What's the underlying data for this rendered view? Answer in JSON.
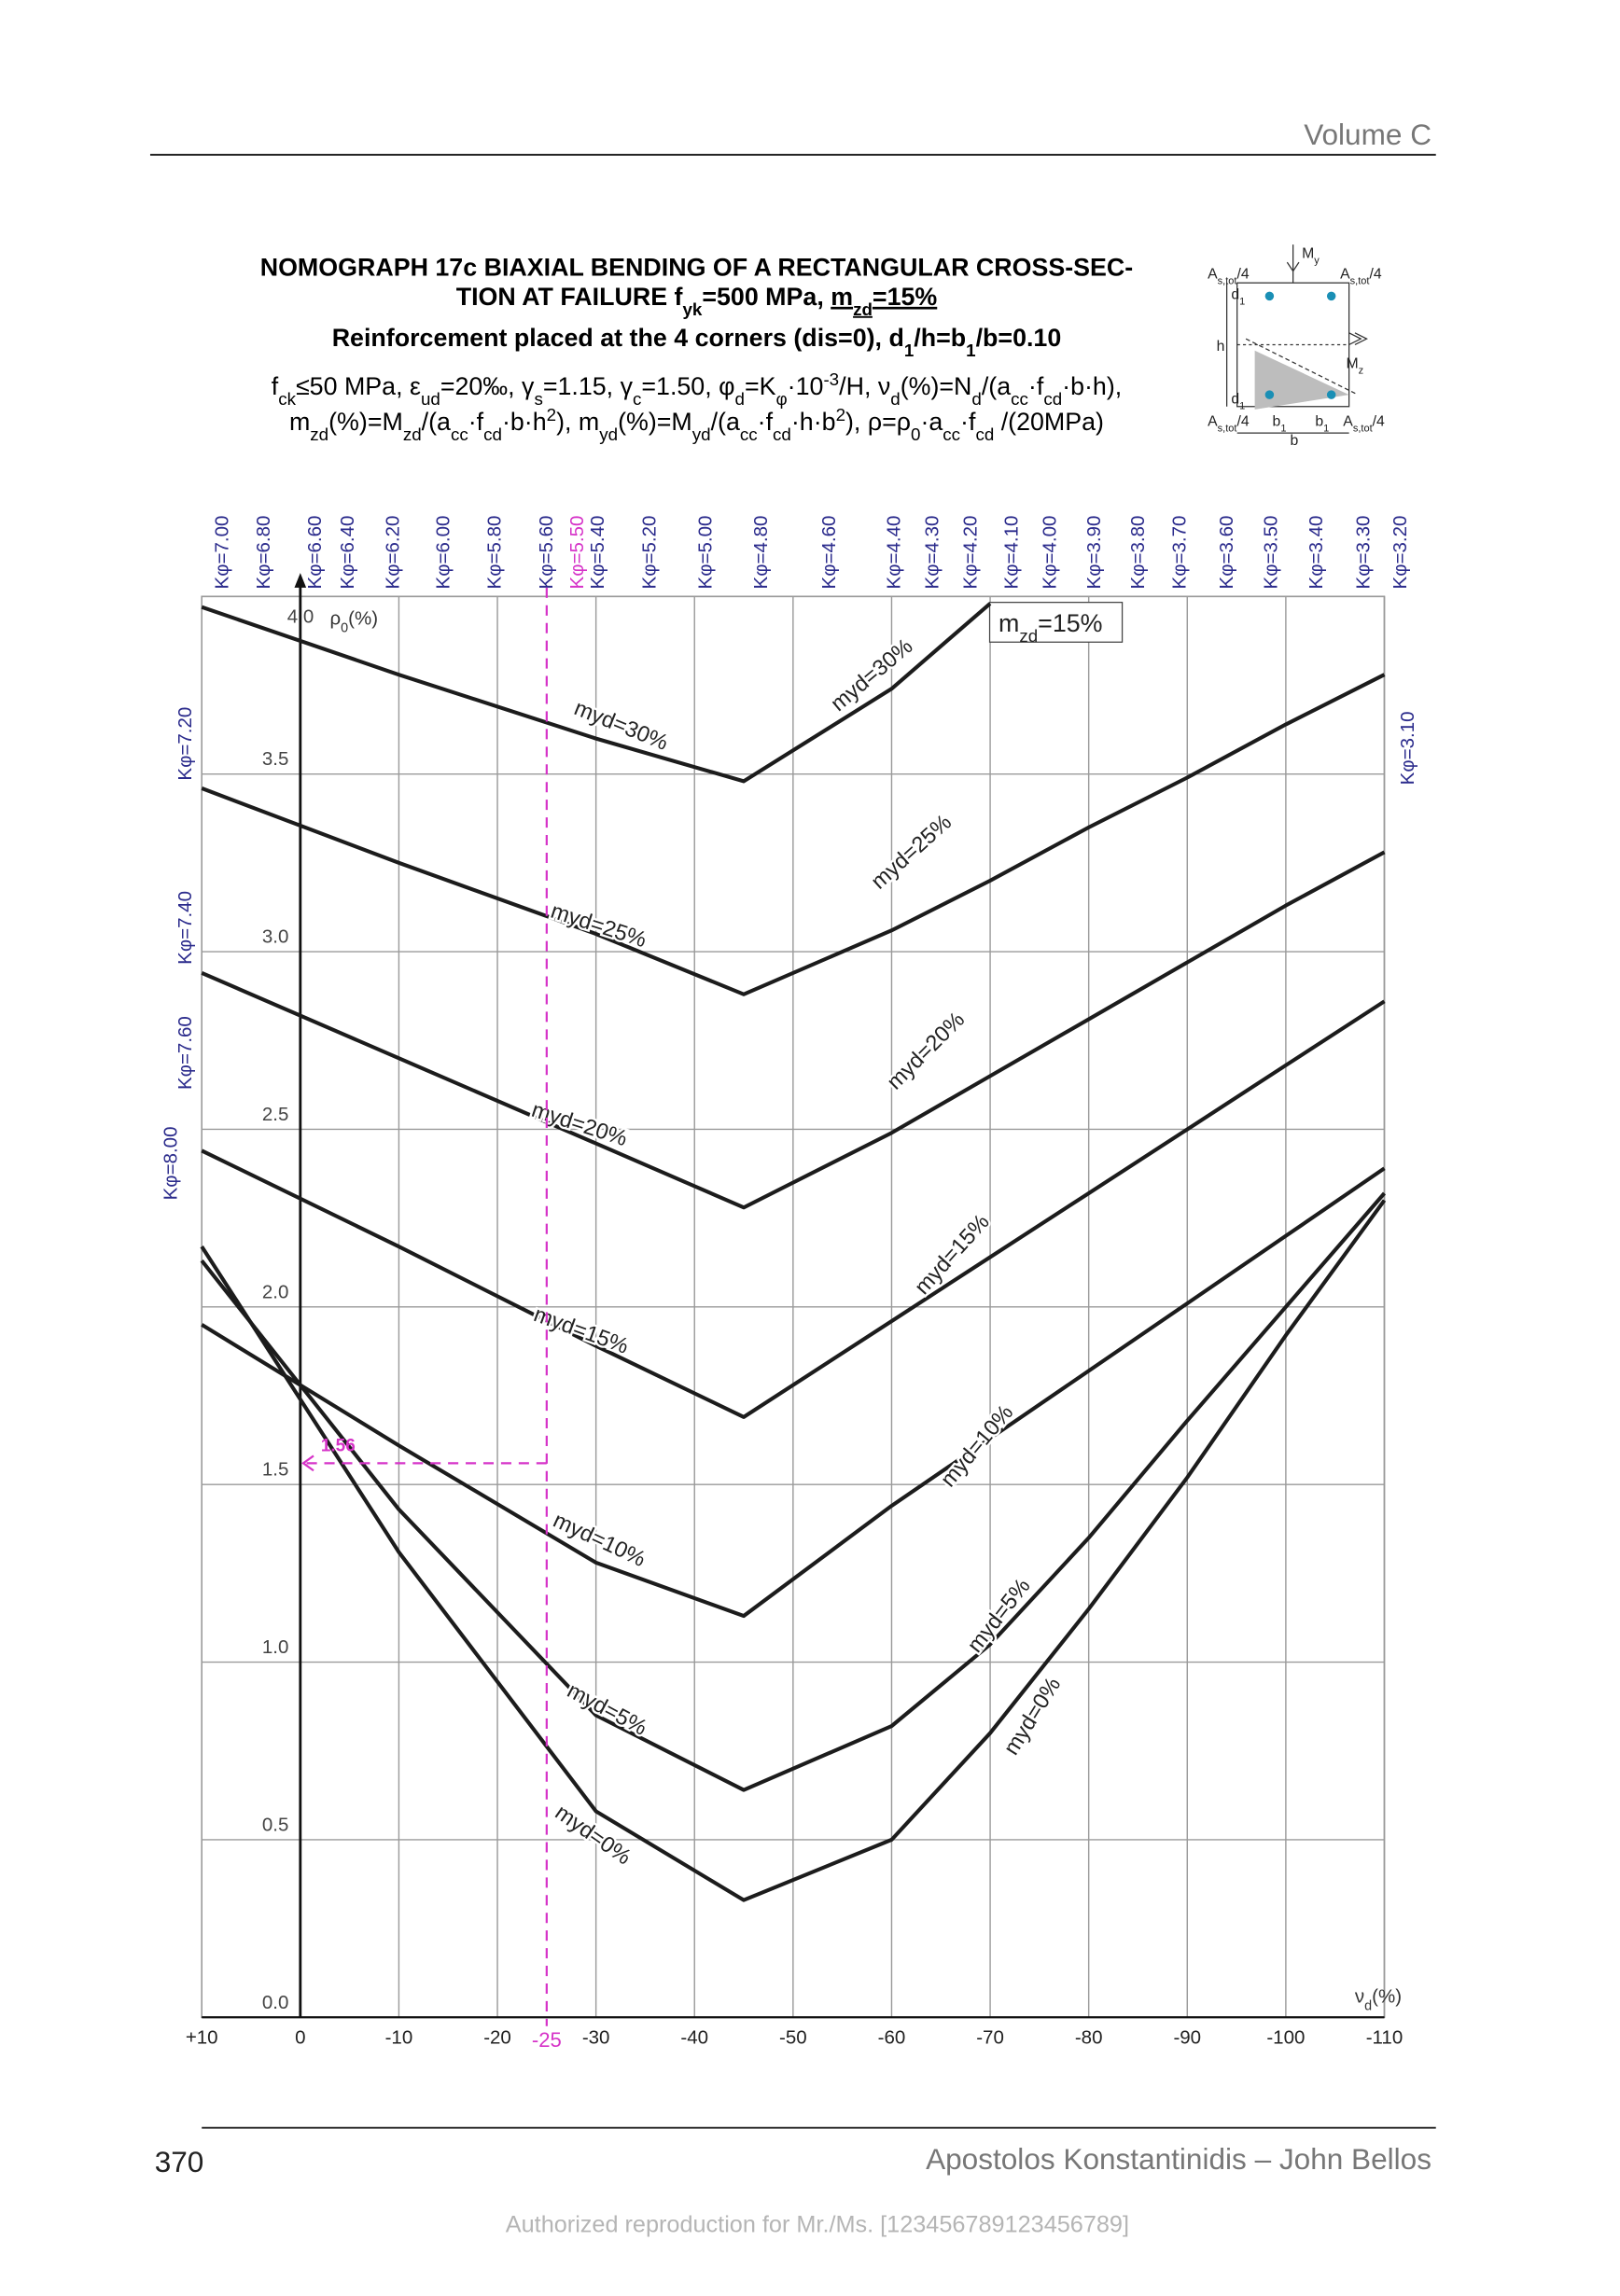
{
  "header": {
    "volume": "Volume C"
  },
  "title_lines": [
    [
      {
        "t": "NOMOGRAPH 17c BIAXIAL BENDING OF A RECTANGULAR CROSS-SEC-"
      }
    ],
    [
      {
        "t": "TION AT FAILURE f"
      },
      {
        "t": "yk",
        "s": "sub"
      },
      {
        "t": "=500 MPa, "
      },
      {
        "t": "m",
        "u": true
      },
      {
        "t": "zd",
        "s": "sub",
        "u": true
      },
      {
        "t": "=15%",
        "u": true
      }
    ],
    [
      {
        "t": "Reinforcement placed at the 4 corners (dis=0), d"
      },
      {
        "t": "1",
        "s": "sub"
      },
      {
        "t": "/h=b"
      },
      {
        "t": "1",
        "s": "sub"
      },
      {
        "t": "/b=0.10"
      }
    ],
    [
      {
        "t": "f"
      },
      {
        "t": "ck",
        "s": "sub"
      },
      {
        "t": "≤50 MPa, ε"
      },
      {
        "t": "ud",
        "s": "sub"
      },
      {
        "t": "=20‰, γ"
      },
      {
        "t": "s",
        "s": "sub"
      },
      {
        "t": "=1.15, γ"
      },
      {
        "t": "c",
        "s": "sub"
      },
      {
        "t": "=1.50, φ"
      },
      {
        "t": "d",
        "s": "sub"
      },
      {
        "t": "=K"
      },
      {
        "t": "φ",
        "s": "sub"
      },
      {
        "t": "·10"
      },
      {
        "t": "-3",
        "s": "sup"
      },
      {
        "t": "/H, ν"
      },
      {
        "t": "d",
        "s": "sub"
      },
      {
        "t": "(%)=N"
      },
      {
        "t": "d",
        "s": "sub"
      },
      {
        "t": "/(a"
      },
      {
        "t": "cc",
        "s": "sub"
      },
      {
        "t": "·f"
      },
      {
        "t": "cd",
        "s": "sub"
      },
      {
        "t": "·b·h),"
      }
    ],
    [
      {
        "t": "m"
      },
      {
        "t": "zd",
        "s": "sub"
      },
      {
        "t": "(%)=M"
      },
      {
        "t": "zd",
        "s": "sub"
      },
      {
        "t": "/(a"
      },
      {
        "t": "cc",
        "s": "sub"
      },
      {
        "t": "·f"
      },
      {
        "t": "cd",
        "s": "sub"
      },
      {
        "t": "·b·h"
      },
      {
        "t": "2",
        "s": "sup"
      },
      {
        "t": "), m"
      },
      {
        "t": "yd",
        "s": "sub"
      },
      {
        "t": "(%)=M"
      },
      {
        "t": "yd",
        "s": "sub"
      },
      {
        "t": "/(a"
      },
      {
        "t": "cc",
        "s": "sub"
      },
      {
        "t": "·f"
      },
      {
        "t": "cd",
        "s": "sub"
      },
      {
        "t": "·h·b"
      },
      {
        "t": "2",
        "s": "sup"
      },
      {
        "t": "), ρ=ρ"
      },
      {
        "t": "0",
        "s": "sub"
      },
      {
        "t": "·a"
      },
      {
        "t": "cc",
        "s": "sub"
      },
      {
        "t": "·f"
      },
      {
        "t": "cd",
        "s": "sub"
      },
      {
        "t": " /(20MPa)"
      }
    ]
  ],
  "diagram": {
    "labels": [
      [
        {
          "t": "A"
        },
        {
          "t": "s,tot",
          "s": "sub"
        },
        {
          "t": "/4"
        }
      ],
      [
        {
          "t": "A"
        },
        {
          "t": "s,tot",
          "s": "sub"
        },
        {
          "t": "/4"
        }
      ],
      [
        {
          "t": "A"
        },
        {
          "t": "s,tot",
          "s": "sub"
        },
        {
          "t": "/4"
        }
      ],
      [
        {
          "t": "A"
        },
        {
          "t": "s,tot",
          "s": "sub"
        },
        {
          "t": "/4"
        }
      ],
      [
        {
          "t": "M"
        },
        {
          "t": "y",
          "s": "sub"
        }
      ],
      [
        {
          "t": "M"
        },
        {
          "t": "z",
          "s": "sub"
        }
      ],
      [
        {
          "t": "h"
        }
      ],
      [
        {
          "t": "d"
        },
        {
          "t": "1",
          "s": "sub"
        }
      ],
      [
        {
          "t": "d"
        },
        {
          "t": "1",
          "s": "sub"
        }
      ],
      [
        {
          "t": "b"
        },
        {
          "t": "1",
          "s": "sub"
        }
      ],
      [
        {
          "t": "b"
        },
        {
          "t": "1",
          "s": "sub"
        }
      ],
      [
        {
          "t": "b"
        }
      ]
    ]
  },
  "chart_data": {
    "type": "line",
    "xlim": [
      10,
      -110
    ],
    "ylim": [
      0,
      4
    ],
    "xticks": [
      {
        "value": 10,
        "label": "+10"
      },
      0,
      -10,
      -20,
      -30,
      -40,
      -50,
      -60,
      -70,
      -80,
      -90,
      -100,
      -110
    ],
    "yticks": [
      {
        "value": 0,
        "label": "0.0"
      },
      0.5,
      {
        "value": 1,
        "label": "1.0"
      },
      1.5,
      {
        "value": 2,
        "label": "2.0"
      },
      2.5,
      {
        "value": 3,
        "label": "3.0"
      },
      3.5,
      {
        "value": 4,
        "label": "4.0"
      }
    ],
    "grid": true,
    "xlabel": [
      {
        "t": "ν"
      },
      {
        "t": "d",
        "s": "sub"
      },
      {
        "t": "(%)"
      }
    ],
    "ylabel": [
      {
        "t": "ρ"
      },
      {
        "t": "0",
        "s": "sub"
      },
      {
        "t": "(%)"
      }
    ],
    "annotation": [
      {
        "t": "m"
      },
      {
        "t": "zd",
        "s": "sub"
      },
      {
        "t": "=15%"
      }
    ],
    "x": [
      10,
      -10,
      -30,
      -45,
      -60,
      -70,
      -80,
      -90,
      -100,
      -110
    ],
    "series": [
      {
        "name": "myd=30%",
        "color": "#1c1c1c",
        "values": [
          3.97,
          3.78,
          3.6,
          3.48,
          3.74,
          3.98,
          null,
          null,
          null,
          null
        ]
      },
      {
        "name": "myd=25%",
        "color": "#1c1c1c",
        "values": [
          3.46,
          3.25,
          3.05,
          2.88,
          3.06,
          3.2,
          3.35,
          3.49,
          3.64,
          3.78
        ]
      },
      {
        "name": "myd=20%",
        "color": "#1c1c1c",
        "values": [
          2.94,
          2.7,
          2.46,
          2.28,
          2.49,
          2.65,
          2.81,
          2.97,
          3.13,
          3.28
        ]
      },
      {
        "name": "myd=15%",
        "color": "#1c1c1c",
        "values": [
          2.44,
          2.17,
          1.89,
          1.69,
          1.96,
          2.14,
          2.32,
          2.5,
          2.68,
          2.86
        ]
      },
      {
        "name": "myd=10%",
        "color": "#1c1c1c",
        "values": [
          1.95,
          1.61,
          1.28,
          1.13,
          1.44,
          1.63,
          1.82,
          2.01,
          2.2,
          2.39
        ]
      },
      {
        "name": "myd=5%",
        "color": "#1c1c1c",
        "values": [
          2.13,
          1.43,
          0.85,
          0.64,
          0.82,
          1.05,
          1.35,
          1.68,
          2.0,
          2.32
        ]
      },
      {
        "name": "myd=0%",
        "color": "#1c1c1c",
        "values": [
          2.17,
          1.31,
          0.58,
          0.33,
          0.5,
          0.8,
          1.15,
          1.52,
          1.92,
          2.3
        ]
      }
    ],
    "kphi_top": [
      "Kφ=7.00",
      "Kφ=6.80",
      "Kφ=6.60",
      "Kφ=6.40",
      "Kφ=6.20",
      "Kφ=6.00",
      "Kφ=5.80",
      "Kφ=5.60",
      "Kφ=5.50",
      "Kφ=5.40",
      "Kφ=5.20",
      "Kφ=5.00",
      "Kφ=4.80",
      "Kφ=4.60",
      "Kφ=4.40",
      "Kφ=4.30",
      "Kφ=4.20",
      "Kφ=4.10",
      "Kφ=4.00",
      "Kφ=3.90",
      "Kφ=3.80",
      "Kφ=3.70",
      "Kφ=3.60",
      "Kφ=3.50",
      "Kφ=3.40",
      "Kφ=3.30",
      "Kφ=3.20"
    ],
    "kphi_left": [
      "Kφ=7.20",
      "Kφ=7.40",
      "Kφ=7.60",
      "Kφ=8.00"
    ],
    "kphi_right": [
      "Kφ=3.10"
    ],
    "label_color": "#2b2b8c",
    "highlight_top": 8,
    "example": {
      "x": -25,
      "y": 1.56,
      "color": "#d633c8"
    }
  },
  "footer": {
    "page": "370",
    "authors": "Apostolos Konstantinidis – John Bellos",
    "watermark": "Authorized reproduction for Mr./Ms. [123456789123456789]"
  }
}
